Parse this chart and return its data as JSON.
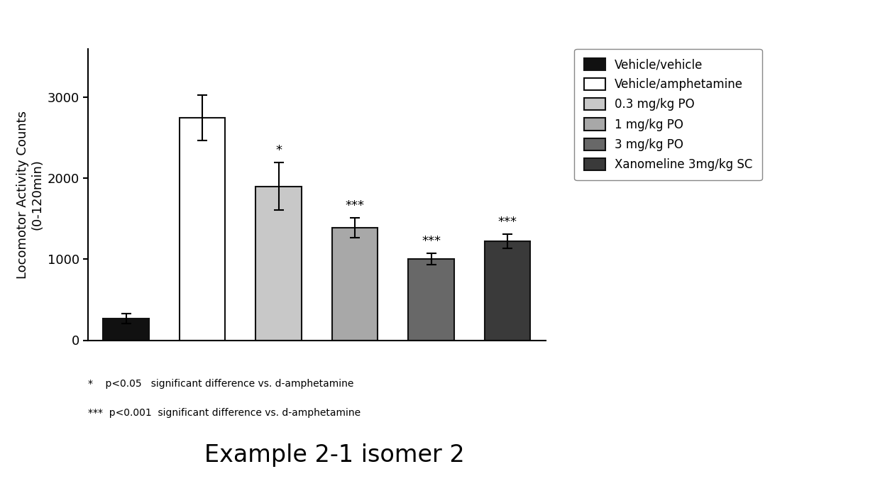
{
  "values": [
    270,
    2750,
    1900,
    1390,
    1000,
    1220
  ],
  "errors": [
    60,
    280,
    290,
    120,
    70,
    90
  ],
  "bar_colors": [
    "#111111",
    "#ffffff",
    "#c8c8c8",
    "#a8a8a8",
    "#686868",
    "#3a3a3a"
  ],
  "bar_edgecolors": [
    "#111111",
    "#111111",
    "#111111",
    "#111111",
    "#111111",
    "#111111"
  ],
  "significance": [
    "",
    "",
    "*",
    "***",
    "***",
    "***"
  ],
  "ylabel": "Locomotor Activity Counts\n(0-120min)",
  "ylim": [
    0,
    3600
  ],
  "yticks": [
    0,
    1000,
    2000,
    3000
  ],
  "legend_labels": [
    "Vehicle/vehicle",
    "Vehicle/amphetamine",
    "0.3 mg/kg PO",
    "1 mg/kg PO",
    "3 mg/kg PO",
    "Xanomeline 3mg/kg SC"
  ],
  "legend_colors": [
    "#111111",
    "#ffffff",
    "#c8c8c8",
    "#a8a8a8",
    "#686868",
    "#3a3a3a"
  ],
  "legend_edgecolors": [
    "#111111",
    "#111111",
    "#111111",
    "#111111",
    "#111111",
    "#111111"
  ],
  "footnote1": "*    p<0.05   significant difference vs. d-amphetamine",
  "footnote2": "***  p<0.001  significant difference vs. d-amphetamine",
  "title": "Example 2-1 isomer 2",
  "title_fontsize": 24,
  "ylabel_fontsize": 13,
  "tick_fontsize": 13,
  "legend_fontsize": 12,
  "sig_fontsize": 13,
  "footnote_fontsize": 10,
  "background_color": "#ffffff"
}
